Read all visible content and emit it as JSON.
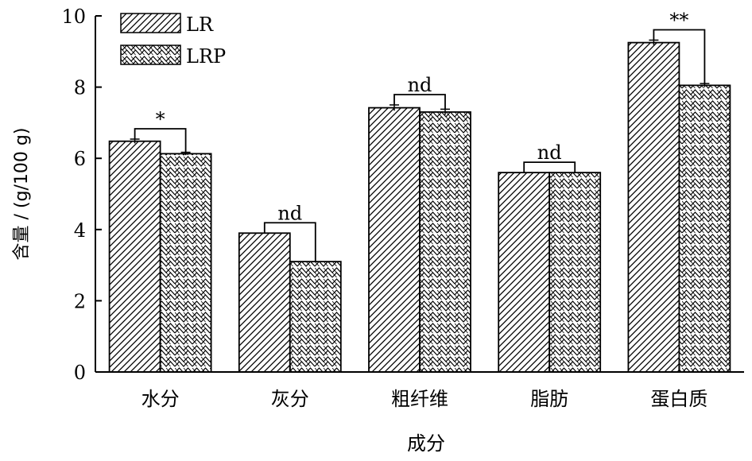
{
  "chart_data": {
    "type": "bar",
    "xlabel": "成分",
    "ylabel": "含量 / (g/100 g)",
    "ylim": [
      0,
      10
    ],
    "yticks": [
      "0",
      "2",
      "4",
      "6",
      "8",
      "10"
    ],
    "categories": [
      "水分",
      "灰分",
      "粗纤维",
      "脂肪",
      "蛋白质"
    ],
    "series": [
      {
        "name": "LR",
        "values": [
          6.48,
          3.9,
          7.42,
          5.6,
          9.25
        ],
        "errors": [
          0.06,
          0,
          0.08,
          0,
          0.07
        ],
        "pattern": "diagonal-hatch"
      },
      {
        "name": "LRP",
        "values": [
          6.13,
          3.1,
          7.3,
          5.6,
          8.05
        ],
        "errors": [
          0.04,
          0,
          0.08,
          0,
          0.05
        ],
        "pattern": "zigzag-crosshatch"
      }
    ],
    "significance": [
      "*",
      "nd",
      "nd",
      "nd",
      "**"
    ],
    "legend_position": "top-left",
    "grid": false
  },
  "colors": {
    "ink": "#000000",
    "background": "#ffffff"
  }
}
